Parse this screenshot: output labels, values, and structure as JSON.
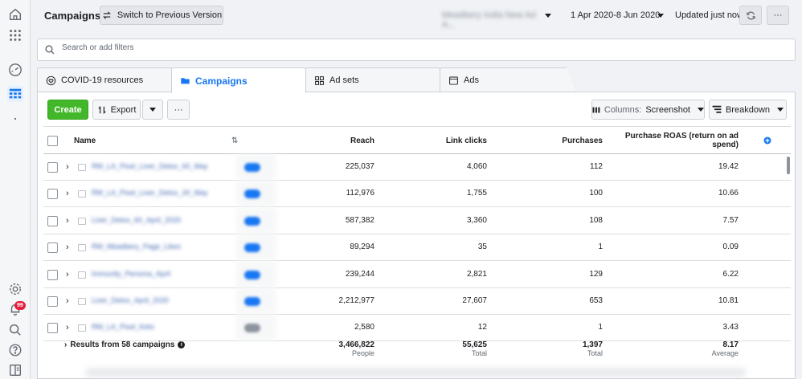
{
  "header": {
    "title": "Campaigns",
    "switch_label": "Switch to Previous Version",
    "account_name": "Meadbery India New Ad A...",
    "date_range": "1 Apr 2020-8 Jun 2020",
    "updated": "Updated just now",
    "more": "···"
  },
  "search": {
    "placeholder": "Search or add filters",
    "value": ""
  },
  "tabs": [
    {
      "label": "COVID-19 resources"
    },
    {
      "label": "Campaigns"
    },
    {
      "label": "Ad sets"
    },
    {
      "label": "Ads"
    }
  ],
  "toolbar": {
    "create": "Create",
    "export": "Export",
    "more": "···",
    "columns_prefix": "Columns:",
    "columns_value": "Screenshot",
    "breakdown": "Breakdown"
  },
  "table": {
    "headers": {
      "name": "Name",
      "sort": "⇅",
      "reach": "Reach",
      "link_clicks": "Link clicks",
      "purchases": "Purchases",
      "roas_line1": "Purchase ROAS (return on ad",
      "roas_line2": "spend)"
    },
    "rows": [
      {
        "name": "RM_LA_Pixel_Liver_Detox_60_May",
        "reach": "225,037",
        "link_clicks": "4,060",
        "purchases": "112",
        "roas": "19.42",
        "active": true
      },
      {
        "name": "RM_LA_Pixel_Liver_Detox_30_May",
        "reach": "112,976",
        "link_clicks": "1,755",
        "purchases": "100",
        "roas": "10.66",
        "active": true
      },
      {
        "name": "Liver_Detox_60_April_2020",
        "reach": "587,382",
        "link_clicks": "3,360",
        "purchases": "108",
        "roas": "7.57",
        "active": true
      },
      {
        "name": "RM_Meadbery_Page_Likes",
        "reach": "89,294",
        "link_clicks": "35",
        "purchases": "1",
        "roas": "0.09",
        "active": true
      },
      {
        "name": "Immunity_Persona_April",
        "reach": "239,244",
        "link_clicks": "2,821",
        "purchases": "129",
        "roas": "6.22",
        "active": true
      },
      {
        "name": "Liver_Detox_April_2020",
        "reach": "2,212,977",
        "link_clicks": "27,607",
        "purchases": "653",
        "roas": "10.81",
        "active": true
      },
      {
        "name": "RM_LA_Pixel_Keto",
        "reach": "2,580",
        "link_clicks": "12",
        "purchases": "1",
        "roas": "3.43",
        "active": false
      }
    ],
    "summary": {
      "label": "Results from 58 campaigns",
      "info": "i",
      "reach": "3,466,822",
      "reach_unit": "People",
      "link_clicks": "55,625",
      "link_clicks_unit": "Total",
      "purchases": "1,397",
      "purchases_unit": "Total",
      "roas": "8.17",
      "roas_unit": "Average"
    }
  },
  "sidebar": {
    "notification_count": "99"
  },
  "colors": {
    "accent": "#1877f2",
    "create": "#42b72a",
    "badge": "#e41e3f"
  }
}
